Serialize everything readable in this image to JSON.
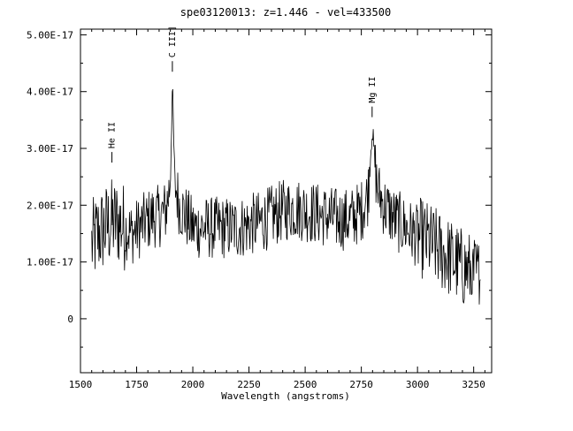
{
  "chart_data": {
    "type": "line",
    "title": "spe03120013: z=1.446 - vel=433500",
    "xlabel": "Wavelength (angstroms)",
    "ylabel": "",
    "xlim": [
      1500,
      3330
    ],
    "ylim": [
      -9.5e-18,
      5.1e-17
    ],
    "x_ticks": [
      1500,
      1750,
      2000,
      2250,
      2500,
      2750,
      3000,
      3250
    ],
    "x_tick_labels": [
      "1500",
      "1750",
      "2000",
      "2250",
      "2500",
      "2750",
      "3000",
      "3250"
    ],
    "y_ticks": [
      0,
      1e-17,
      2e-17,
      3e-17,
      4e-17,
      5e-17
    ],
    "y_tick_labels": [
      "0",
      "1.00E-17",
      "2.00E-17",
      "3.00E-17",
      "4.00E-17",
      "5.00E-17"
    ],
    "grid": false,
    "series": [
      {
        "x": [
          1550,
          1580,
          1610,
          1640,
          1670,
          1700,
          1730,
          1760,
          1790,
          1820,
          1850,
          1880,
          1900,
          1909,
          1920,
          1940,
          1970,
          2000,
          2050,
          2100,
          2150,
          2200,
          2250,
          2300,
          2350,
          2400,
          2450,
          2500,
          2550,
          2600,
          2650,
          2700,
          2750,
          2780,
          2798,
          2820,
          2850,
          2900,
          2950,
          3000,
          3050,
          3100,
          3150,
          3200,
          3250,
          3280
        ],
        "y": [
          1.3e-17,
          1.5e-17,
          1.6e-17,
          1.7e-17,
          1.7e-17,
          1.6e-17,
          1.5e-17,
          1.6e-17,
          1.7e-17,
          1.8e-17,
          1.8e-17,
          1.9e-17,
          2.4e-17,
          4.1e-17,
          2.4e-17,
          2e-17,
          1.8e-17,
          1.6e-17,
          1.6e-17,
          1.6e-17,
          1.6e-17,
          1.6e-17,
          1.65e-17,
          1.7e-17,
          1.8e-17,
          1.9e-17,
          1.95e-17,
          1.9e-17,
          1.85e-17,
          1.8e-17,
          1.75e-17,
          1.75e-17,
          1.9e-17,
          2.2e-17,
          3.35e-17,
          2.3e-17,
          2e-17,
          1.75e-17,
          1.6e-17,
          1.45e-17,
          1.35e-17,
          1.2e-17,
          1.05e-17,
          9e-18,
          8e-18,
          7e-18
        ]
      }
    ],
    "annotations": [
      {
        "text": "He II",
        "x": 1640,
        "y": 2.75e-17
      },
      {
        "text": "C III]",
        "x": 1909,
        "y": 4.35e-17
      },
      {
        "text": "Mg II",
        "x": 2798,
        "y": 3.55e-17
      }
    ]
  }
}
